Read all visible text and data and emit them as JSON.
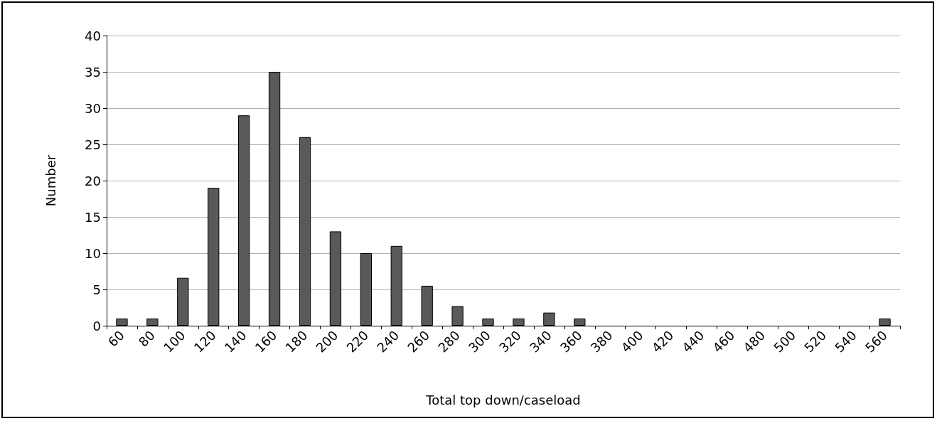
{
  "chart_data": {
    "type": "bar",
    "xlabel": "Total top down/caseload",
    "ylabel": "Number",
    "categories": [
      "60",
      "80",
      "100",
      "120",
      "140",
      "160",
      "180",
      "200",
      "220",
      "240",
      "260",
      "280",
      "300",
      "320",
      "340",
      "360",
      "380",
      "400",
      "420",
      "440",
      "460",
      "480",
      "500",
      "520",
      "540",
      "560"
    ],
    "values": [
      1,
      1,
      6.6,
      19,
      29,
      35,
      26,
      13,
      10,
      11,
      5.5,
      2.7,
      1,
      1,
      1.8,
      1,
      0,
      0,
      0,
      0,
      0,
      0,
      0,
      0,
      0,
      1
    ],
    "color": "#595959",
    "ylim": [
      0,
      40
    ],
    "yticks": [
      0,
      5,
      10,
      15,
      20,
      25,
      30,
      35,
      40
    ],
    "grid": "y"
  }
}
